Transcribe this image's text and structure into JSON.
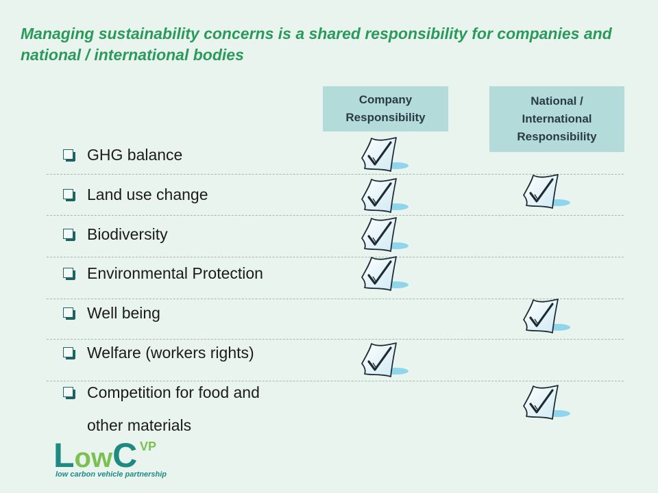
{
  "slide": {
    "title": "Managing sustainability concerns is a shared responsibility for companies and national / international bodies"
  },
  "columns": {
    "company": "Company Responsibility",
    "national": "National / International Responsibility"
  },
  "rows": [
    {
      "label": "GHG balance",
      "company": true,
      "national": false
    },
    {
      "label": "Land use change",
      "company": true,
      "national": true
    },
    {
      "label": "Biodiversity",
      "company": true,
      "national": false
    },
    {
      "label": "Environmental Protection",
      "company": true,
      "national": false
    },
    {
      "label": "Well being",
      "company": false,
      "national": true
    },
    {
      "label": "Welfare (workers rights)",
      "company": true,
      "national": false
    },
    {
      "label": "Competition for food and",
      "label_line2": "other materials",
      "company": false,
      "national": true
    }
  ],
  "logo": {
    "letters": "LowC",
    "superscript": "VP",
    "tagline": "low carbon vehicle partnership"
  },
  "colors": {
    "title": "#2a9a5a",
    "header_bg": "#b2dbd9",
    "background": "#e9f4ef",
    "logo_green": "#7cc051",
    "logo_teal": "#1e8a82"
  }
}
